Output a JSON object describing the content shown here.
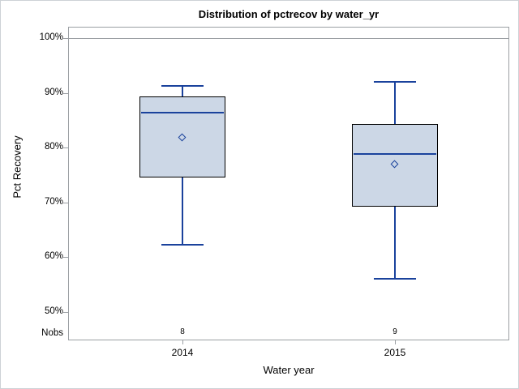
{
  "chart_data": {
    "type": "boxplot",
    "title": "Distribution of pctrecov by water_yr",
    "xlabel": "Water year",
    "ylabel": "Pct Recovery",
    "nobs_label": "Nobs",
    "y_axis": {
      "tick_labels": [
        "100%",
        "90%",
        "80%",
        "70%",
        "60%",
        "50%"
      ],
      "tick_values": [
        100,
        90,
        80,
        70,
        60,
        50
      ],
      "reference_line_value": 100,
      "ylim": [
        45,
        102
      ]
    },
    "categories": [
      "2014",
      "2015"
    ],
    "series": [
      {
        "category": "2014",
        "nobs": "8",
        "whisker_high": 91.3,
        "q3": 89.4,
        "median": 86.4,
        "mean": 81.8,
        "q1": 74.6,
        "whisker_low": 62.3
      },
      {
        "category": "2015",
        "nobs": "9",
        "whisker_high": 92.0,
        "q3": 84.3,
        "median": 78.8,
        "mean": 76.9,
        "q1": 69.2,
        "whisker_low": 56.0
      }
    ],
    "legend": null,
    "grid": "off",
    "colors": {
      "box_fill": "#ccd7e6",
      "box_border": "#000000",
      "line": "#1a429c",
      "axis": "#9b9fa3",
      "text": "#000000"
    }
  }
}
